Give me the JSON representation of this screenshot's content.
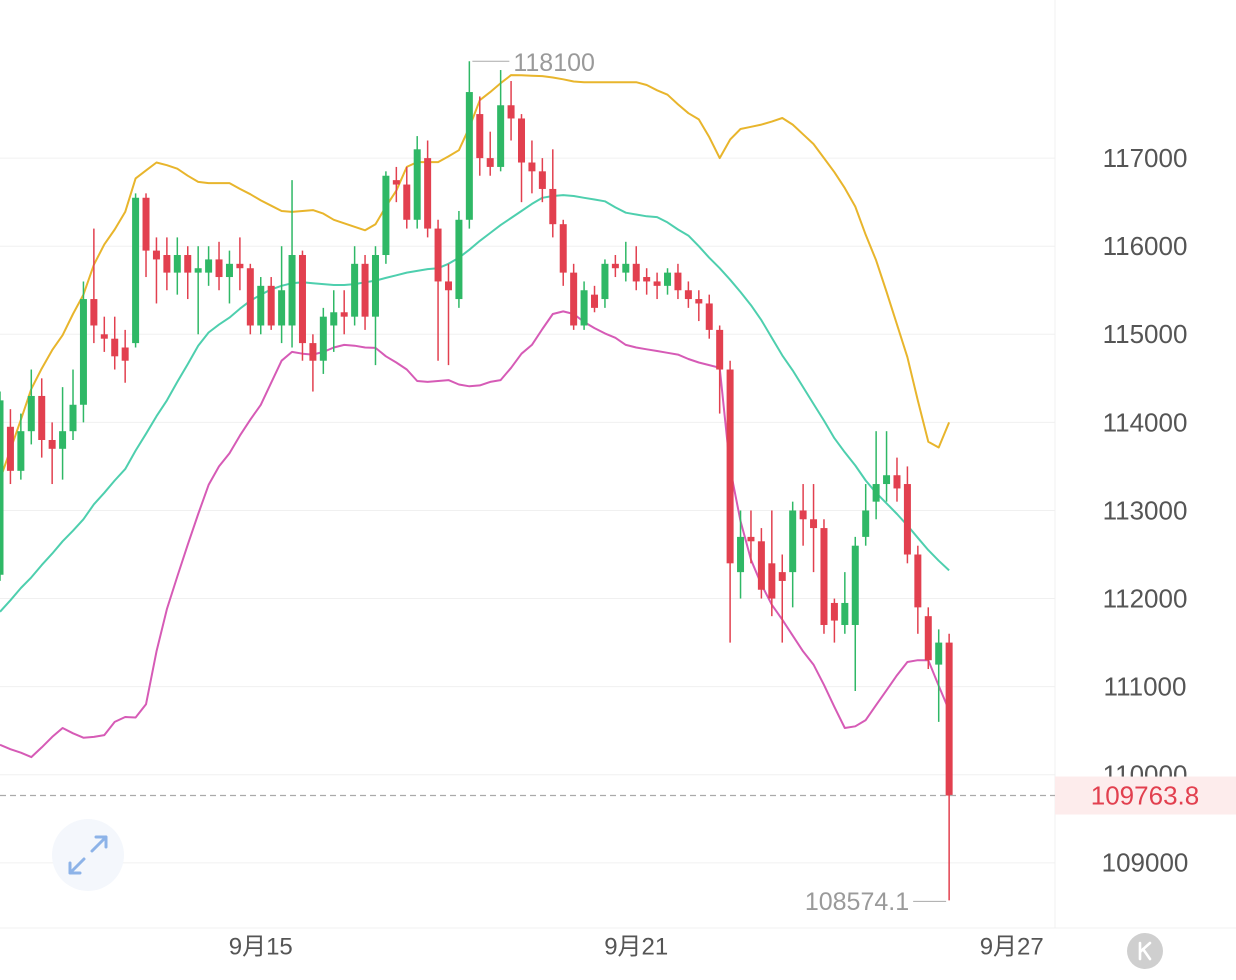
{
  "chart_data": {
    "type": "candlestick",
    "xlim": [
      0,
      101.15
    ],
    "xticks": [
      {
        "value": 25,
        "label": "9月15"
      },
      {
        "value": 61,
        "label": "9月21"
      },
      {
        "value": 97,
        "label": "9月27"
      }
    ],
    "ylim": [
      108260,
      118795
    ],
    "yticks": [
      109000,
      110000,
      111000,
      112000,
      113000,
      114000,
      115000,
      116000,
      117000
    ],
    "grid": true,
    "up_color": "#2fb866",
    "down_color": "#e2404f",
    "open": [
      112270,
      113950,
      113450,
      113900,
      114300,
      113800,
      113700,
      113900,
      114200,
      115400,
      115000,
      114950,
      114850,
      114900,
      116550,
      115950,
      115900,
      115700,
      115900,
      115700,
      115700,
      115850,
      115650,
      115800,
      115750,
      115100,
      115550,
      115100,
      115100,
      115900,
      114900,
      114700,
      115100,
      115250,
      115200,
      115800,
      115200,
      115900,
      116750,
      116700,
      116300,
      117000,
      116200,
      115600,
      115400,
      116300,
      117500,
      117000,
      116900,
      117600,
      117450,
      116950,
      116850,
      116650,
      116250,
      115700,
      115100,
      115450,
      115400,
      115800,
      115700,
      115800,
      115650,
      115600,
      115550,
      115700,
      115500,
      115400,
      115350,
      115050,
      114600,
      112300,
      112700,
      112650,
      112400,
      112300,
      112300,
      113000,
      112900,
      112800,
      111950,
      111700,
      111700,
      112700,
      113100,
      113300,
      113400,
      113300,
      112500,
      111800,
      111250,
      111500
    ],
    "high": [
      114350,
      114150,
      114100,
      114600,
      114500,
      114000,
      114400,
      114600,
      115600,
      116200,
      115200,
      115200,
      115050,
      116600,
      116600,
      116100,
      116100,
      116100,
      116000,
      116000,
      116000,
      116050,
      115950,
      116100,
      115800,
      115650,
      115650,
      116000,
      116750,
      115950,
      115000,
      115300,
      115500,
      115500,
      116000,
      115900,
      116000,
      116850,
      116900,
      116900,
      117250,
      117200,
      116300,
      115800,
      116400,
      118100,
      117700,
      117300,
      118000,
      117875.2,
      117500,
      117200,
      117000,
      117100,
      116300,
      115800,
      115600,
      115550,
      115850,
      115900,
      116050,
      116000,
      115750,
      115700,
      115750,
      115800,
      115600,
      115500,
      115450,
      115100,
      114700,
      113000,
      113000,
      112800,
      113000,
      112500,
      113100,
      113300,
      113300,
      112900,
      112000,
      112300,
      112700,
      113300,
      113900,
      113900,
      113600,
      113500,
      112600,
      111900,
      111650,
      111600
    ],
    "low": [
      112200,
      113300,
      113350,
      113750,
      113600,
      113300,
      113350,
      113800,
      114000,
      114900,
      114800,
      114600,
      114450,
      114850,
      115650,
      115350,
      115500,
      115450,
      115400,
      115000,
      115550,
      115500,
      115350,
      115500,
      115000,
      115000,
      115050,
      114900,
      114850,
      114700,
      114350,
      114550,
      114800,
      115000,
      115100,
      115050,
      114650,
      115800,
      116500,
      116200,
      116200,
      116100,
      114700,
      114650,
      115300,
      116200,
      116800,
      116800,
      116850,
      117200,
      116500,
      116600,
      116500,
      116100,
      115550,
      115050,
      115050,
      115250,
      115300,
      115650,
      115600,
      115500,
      115450,
      115400,
      115450,
      115400,
      115300,
      115150,
      114950,
      114100,
      111500,
      112000,
      112400,
      112000,
      111800,
      111500,
      111900,
      112600,
      112300,
      111600,
      111500,
      111600,
      110950,
      112600,
      112900,
      113100,
      113100,
      112400,
      111600,
      111200,
      110600,
      108574.1
    ],
    "close": [
      114250,
      113450,
      113900,
      114300,
      113800,
      113700,
      113900,
      114200,
      115400,
      115100,
      114950,
      114750,
      114700,
      116550,
      115950,
      115850,
      115700,
      115900,
      115700,
      115750,
      115850,
      115650,
      115800,
      115750,
      115100,
      115550,
      115100,
      115500,
      115900,
      114900,
      114700,
      115200,
      115250,
      115200,
      115800,
      115200,
      115900,
      116800,
      116700,
      116300,
      117100,
      116200,
      115600,
      115500,
      116300,
      117750,
      117000,
      116900,
      117600,
      117450,
      116950,
      116850,
      116650,
      116250,
      115700,
      115100,
      115500,
      115300,
      115800,
      115750,
      115800,
      115600,
      115600,
      115550,
      115700,
      115500,
      115400,
      115350,
      115050,
      114600,
      112400,
      112700,
      112650,
      112100,
      112000,
      112200,
      113000,
      112900,
      112800,
      111700,
      111750,
      111950,
      112600,
      113000,
      113300,
      113400,
      113250,
      112500,
      111900,
      111300,
      111500,
      109763.8
    ],
    "series": [
      {
        "color": "#e8b52c",
        "values": [
          113350,
          113690,
          114030,
          114380,
          114610,
          114820,
          114990,
          115230,
          115450,
          115790,
          116020,
          116190,
          116390,
          116770,
          116860,
          116950,
          116920,
          116880,
          116800,
          116730,
          116716,
          116716,
          116716,
          116650,
          116590,
          116520,
          116460,
          116400,
          116390,
          116400,
          116410,
          116370,
          116300,
          116260,
          116220,
          116180,
          116250,
          116450,
          116630,
          116900,
          116955,
          116955,
          116955,
          117020,
          117090,
          117350,
          117658,
          117750,
          117850,
          117942,
          117940,
          117935,
          117931,
          117915,
          117895,
          117870,
          117862,
          117862,
          117862,
          117862,
          117862,
          117862,
          117830,
          117770,
          117720,
          117610,
          117510,
          117440,
          117240,
          117000,
          117210,
          117330,
          117355,
          117380,
          117415,
          117455,
          117380,
          117270,
          117160,
          117000,
          116840,
          116660,
          116450,
          116130,
          115840,
          115480,
          115110,
          114740,
          114250,
          113780,
          113715,
          114000
        ]
      },
      {
        "color": "#4ecfae",
        "values": [
          111850,
          111980,
          112120,
          112240,
          112380,
          112510,
          112650,
          112770,
          112900,
          113070,
          113200,
          113340,
          113470,
          113680,
          113870,
          114070,
          114250,
          114460,
          114660,
          114870,
          115020,
          115110,
          115190,
          115290,
          115380,
          115450,
          115510,
          115550,
          115580,
          115590,
          115580,
          115570,
          115560,
          115560,
          115570,
          115590,
          115610,
          115640,
          115670,
          115700,
          115720,
          115740,
          115750,
          115800,
          115870,
          115960,
          116060,
          116150,
          116240,
          116320,
          116400,
          116480,
          116550,
          116570,
          116580,
          116570,
          116550,
          116530,
          116510,
          116440,
          116380,
          116360,
          116340,
          116330,
          116270,
          116190,
          116120,
          116000,
          115870,
          115750,
          115620,
          115480,
          115330,
          115160,
          114960,
          114760,
          114590,
          114400,
          114210,
          114020,
          113820,
          113660,
          113510,
          113340,
          113200,
          113080,
          112960,
          112830,
          112690,
          112550,
          112430,
          112320
        ]
      },
      {
        "color": "#d65bb6",
        "values": [
          110340,
          110290,
          110250,
          110200,
          110310,
          110430,
          110530,
          110470,
          110420,
          110430,
          110450,
          110600,
          110655,
          110650,
          110800,
          111400,
          111880,
          112250,
          112610,
          112960,
          113290,
          113500,
          113650,
          113850,
          114030,
          114200,
          114450,
          114700,
          114800,
          114780,
          114770,
          114800,
          114850,
          114880,
          114870,
          114850,
          114845,
          114750,
          114680,
          114600,
          114470,
          114460,
          114470,
          114480,
          114430,
          114410,
          114420,
          114460,
          114480,
          114620,
          114780,
          114880,
          115060,
          115230,
          115260,
          115230,
          115140,
          115070,
          115010,
          114960,
          114880,
          114850,
          114830,
          114810,
          114790,
          114770,
          114720,
          114680,
          114650,
          114620,
          113480,
          112880,
          112440,
          112160,
          111930,
          111760,
          111580,
          111400,
          111250,
          111020,
          110770,
          110530,
          110550,
          110620,
          110790,
          110960,
          111130,
          111280,
          111300,
          111300,
          111010,
          110730
        ]
      }
    ]
  }
}
